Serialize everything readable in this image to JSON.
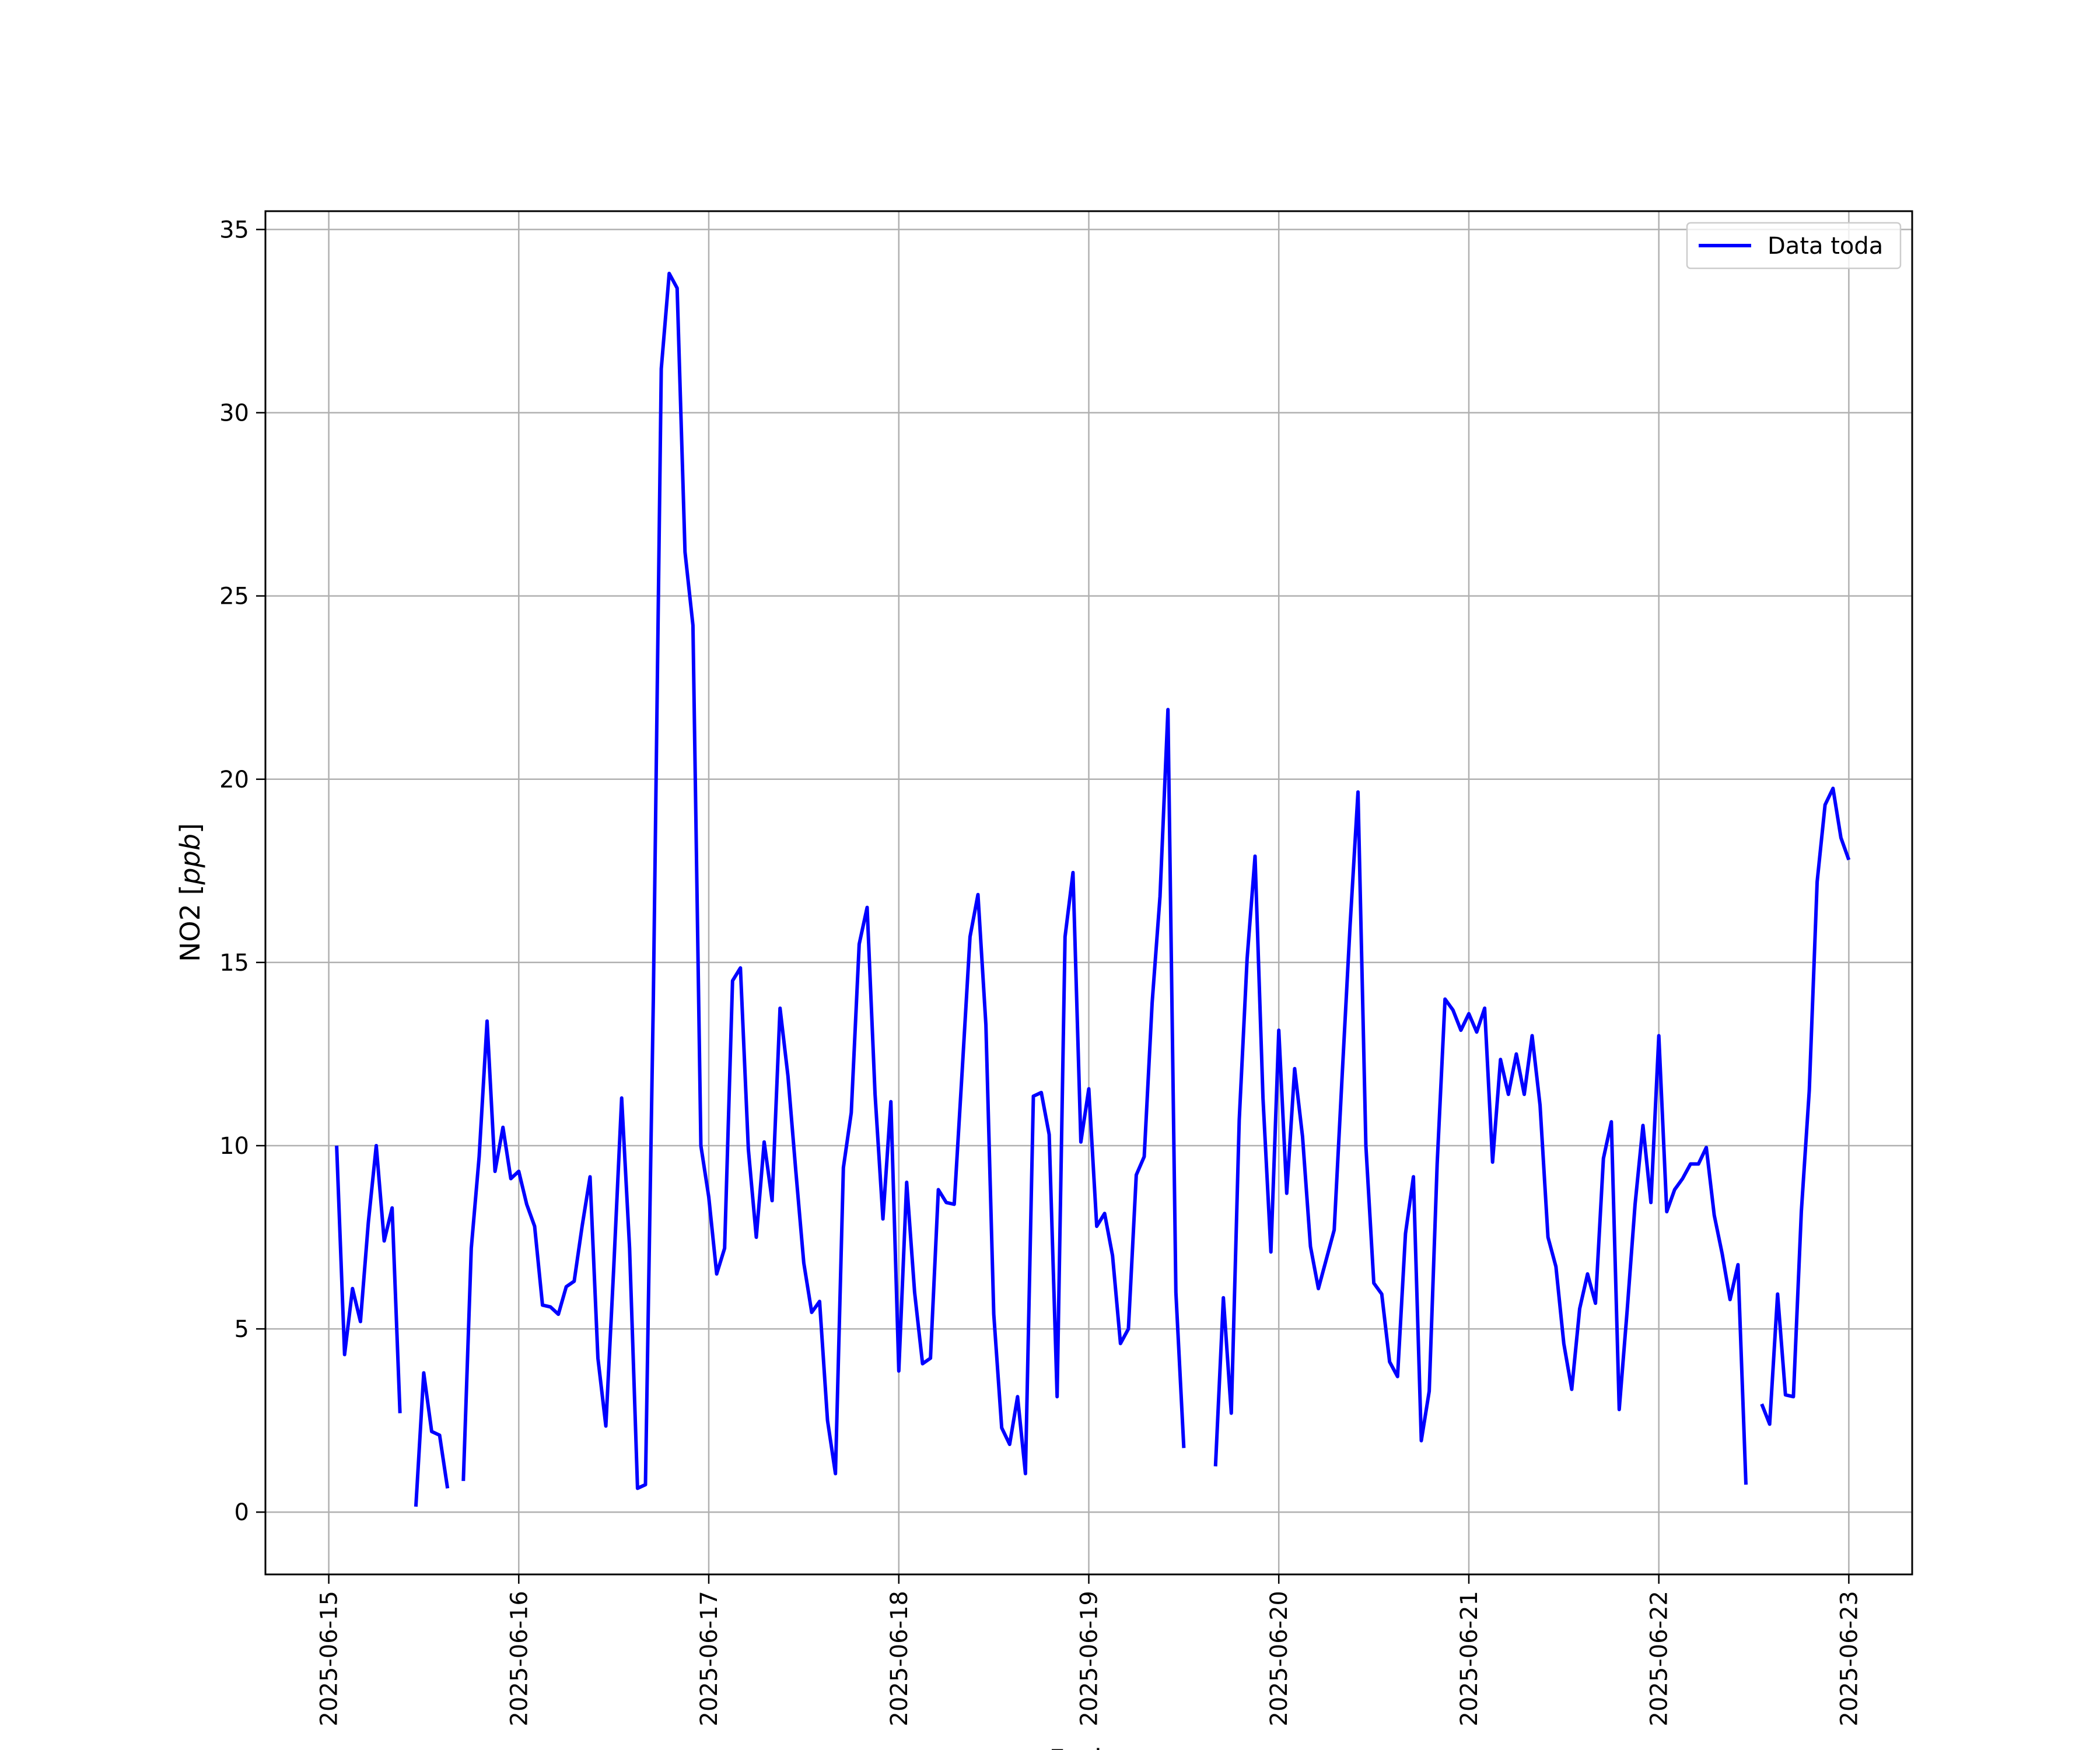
{
  "chart_data": {
    "type": "line",
    "xlabel": "Fecha",
    "ylabel_prefix": "NO2 [",
    "ylabel_unit": "ppb",
    "ylabel_suffix": "]",
    "grid": true,
    "legend_position": "top-right",
    "xlim": [
      "2025-06-14T16:00",
      "2025-06-23T08:00"
    ],
    "ylim": [
      -1.7,
      35.5
    ],
    "x_ticks": [
      "2025-06-15",
      "2025-06-16",
      "2025-06-17",
      "2025-06-18",
      "2025-06-19",
      "2025-06-20",
      "2025-06-21",
      "2025-06-22",
      "2025-06-23"
    ],
    "y_ticks": [
      0,
      5,
      10,
      15,
      20,
      25,
      30,
      35
    ],
    "series": [
      {
        "name": "Data toda",
        "color": "#0000ff",
        "points": [
          [
            "2025-06-15T01:00",
            10.0
          ],
          [
            "2025-06-15T02:00",
            4.3
          ],
          [
            "2025-06-15T03:00",
            6.1
          ],
          [
            "2025-06-15T04:00",
            5.2
          ],
          [
            "2025-06-15T05:00",
            7.9
          ],
          [
            "2025-06-15T06:00",
            10.0
          ],
          [
            "2025-06-15T07:00",
            7.4
          ],
          [
            "2025-06-15T08:00",
            8.3
          ],
          [
            "2025-06-15T09:00",
            2.7
          ],
          [
            "2025-06-15T10:00",
            null
          ],
          [
            "2025-06-15T11:00",
            0.15
          ],
          [
            "2025-06-15T12:00",
            3.8
          ],
          [
            "2025-06-15T13:00",
            2.2
          ],
          [
            "2025-06-15T14:00",
            2.1
          ],
          [
            "2025-06-15T15:00",
            0.65
          ],
          [
            "2025-06-15T16:00",
            null
          ],
          [
            "2025-06-15T17:00",
            0.85
          ],
          [
            "2025-06-15T18:00",
            7.2
          ],
          [
            "2025-06-15T19:00",
            9.7
          ],
          [
            "2025-06-15T20:00",
            13.4
          ],
          [
            "2025-06-15T21:00",
            9.3
          ],
          [
            "2025-06-15T22:00",
            10.5
          ],
          [
            "2025-06-15T23:00",
            9.1
          ],
          [
            "2025-06-16T00:00",
            9.3
          ],
          [
            "2025-06-16T01:00",
            8.4
          ],
          [
            "2025-06-16T02:00",
            7.8
          ],
          [
            "2025-06-16T03:00",
            5.65
          ],
          [
            "2025-06-16T04:00",
            5.6
          ],
          [
            "2025-06-16T05:00",
            5.4
          ],
          [
            "2025-06-16T06:00",
            6.15
          ],
          [
            "2025-06-16T07:00",
            6.3
          ],
          [
            "2025-06-16T08:00",
            7.8
          ],
          [
            "2025-06-16T09:00",
            9.15
          ],
          [
            "2025-06-16T10:00",
            4.2
          ],
          [
            "2025-06-16T11:00",
            2.35
          ],
          [
            "2025-06-16T12:00",
            6.7
          ],
          [
            "2025-06-16T13:00",
            11.3
          ],
          [
            "2025-06-16T14:00",
            7.2
          ],
          [
            "2025-06-16T15:00",
            0.65
          ],
          [
            "2025-06-16T16:00",
            0.75
          ],
          [
            "2025-06-16T17:00",
            14.0
          ],
          [
            "2025-06-16T18:00",
            31.2
          ],
          [
            "2025-06-16T19:00",
            33.8
          ],
          [
            "2025-06-16T20:00",
            33.4
          ],
          [
            "2025-06-16T21:00",
            26.2
          ],
          [
            "2025-06-16T22:00",
            24.2
          ],
          [
            "2025-06-16T23:00",
            10.0
          ],
          [
            "2025-06-17T00:00",
            8.6
          ],
          [
            "2025-06-17T01:00",
            6.5
          ],
          [
            "2025-06-17T02:00",
            7.2
          ],
          [
            "2025-06-17T03:00",
            14.5
          ],
          [
            "2025-06-17T04:00",
            14.85
          ],
          [
            "2025-06-17T05:00",
            9.9
          ],
          [
            "2025-06-17T06:00",
            7.5
          ],
          [
            "2025-06-17T07:00",
            10.1
          ],
          [
            "2025-06-17T08:00",
            8.5
          ],
          [
            "2025-06-17T09:00",
            13.75
          ],
          [
            "2025-06-17T10:00",
            11.9
          ],
          [
            "2025-06-17T11:00",
            9.3
          ],
          [
            "2025-06-17T12:00",
            6.8
          ],
          [
            "2025-06-17T13:00",
            5.45
          ],
          [
            "2025-06-17T14:00",
            5.75
          ],
          [
            "2025-06-17T15:00",
            2.5
          ],
          [
            "2025-06-17T16:00",
            1.05
          ],
          [
            "2025-06-17T17:00",
            9.4
          ],
          [
            "2025-06-17T18:00",
            10.9
          ],
          [
            "2025-06-17T19:00",
            15.5
          ],
          [
            "2025-06-17T20:00",
            16.5
          ],
          [
            "2025-06-17T21:00",
            11.4
          ],
          [
            "2025-06-17T22:00",
            8.0
          ],
          [
            "2025-06-17T23:00",
            11.2
          ],
          [
            "2025-06-18T00:00",
            3.85
          ],
          [
            "2025-06-18T01:00",
            9.0
          ],
          [
            "2025-06-18T02:00",
            6.0
          ],
          [
            "2025-06-18T03:00",
            4.05
          ],
          [
            "2025-06-18T04:00",
            4.2
          ],
          [
            "2025-06-18T05:00",
            8.8
          ],
          [
            "2025-06-18T06:00",
            8.45
          ],
          [
            "2025-06-18T07:00",
            8.4
          ],
          [
            "2025-06-18T08:00",
            12.0
          ],
          [
            "2025-06-18T09:00",
            15.7
          ],
          [
            "2025-06-18T10:00",
            16.85
          ],
          [
            "2025-06-18T11:00",
            13.3
          ],
          [
            "2025-06-18T12:00",
            5.4
          ],
          [
            "2025-06-18T13:00",
            2.3
          ],
          [
            "2025-06-18T14:00",
            1.85
          ],
          [
            "2025-06-18T15:00",
            3.15
          ],
          [
            "2025-06-18T16:00",
            1.05
          ],
          [
            "2025-06-18T17:00",
            11.35
          ],
          [
            "2025-06-18T18:00",
            11.45
          ],
          [
            "2025-06-18T19:00",
            10.3
          ],
          [
            "2025-06-18T20:00",
            3.15
          ],
          [
            "2025-06-18T21:00",
            15.7
          ],
          [
            "2025-06-18T22:00",
            17.45
          ],
          [
            "2025-06-18T23:00",
            10.1
          ],
          [
            "2025-06-19T00:00",
            11.55
          ],
          [
            "2025-06-19T01:00",
            7.8
          ],
          [
            "2025-06-19T02:00",
            8.15
          ],
          [
            "2025-06-19T03:00",
            7.0
          ],
          [
            "2025-06-19T04:00",
            4.6
          ],
          [
            "2025-06-19T05:00",
            5.0
          ],
          [
            "2025-06-19T06:00",
            9.2
          ],
          [
            "2025-06-19T07:00",
            9.7
          ],
          [
            "2025-06-19T08:00",
            13.9
          ],
          [
            "2025-06-19T09:00",
            16.8
          ],
          [
            "2025-06-19T10:00",
            21.9
          ],
          [
            "2025-06-19T11:00",
            6.0
          ],
          [
            "2025-06-19T12:00",
            1.75
          ],
          [
            "2025-06-19T13:00",
            null
          ],
          [
            "2025-06-19T14:00",
            null
          ],
          [
            "2025-06-19T15:00",
            null
          ],
          [
            "2025-06-19T16:00",
            1.25
          ],
          [
            "2025-06-19T17:00",
            5.85
          ],
          [
            "2025-06-19T18:00",
            2.7
          ],
          [
            "2025-06-19T19:00",
            10.7
          ],
          [
            "2025-06-19T20:00",
            15.1
          ],
          [
            "2025-06-19T21:00",
            17.9
          ],
          [
            "2025-06-19T22:00",
            11.3
          ],
          [
            "2025-06-19T23:00",
            7.1
          ],
          [
            "2025-06-20T00:00",
            13.15
          ],
          [
            "2025-06-20T01:00",
            8.7
          ],
          [
            "2025-06-20T02:00",
            12.1
          ],
          [
            "2025-06-20T03:00",
            10.25
          ],
          [
            "2025-06-20T04:00",
            7.25
          ],
          [
            "2025-06-20T05:00",
            6.1
          ],
          [
            "2025-06-20T06:00",
            6.9
          ],
          [
            "2025-06-20T07:00",
            7.7
          ],
          [
            "2025-06-20T08:00",
            11.9
          ],
          [
            "2025-06-20T09:00",
            16.0
          ],
          [
            "2025-06-20T10:00",
            19.65
          ],
          [
            "2025-06-20T11:00",
            10.0
          ],
          [
            "2025-06-20T12:00",
            6.25
          ],
          [
            "2025-06-20T13:00",
            5.95
          ],
          [
            "2025-06-20T14:00",
            4.1
          ],
          [
            "2025-06-20T15:00",
            3.7
          ],
          [
            "2025-06-20T16:00",
            7.6
          ],
          [
            "2025-06-20T17:00",
            9.15
          ],
          [
            "2025-06-20T18:00",
            1.95
          ],
          [
            "2025-06-20T19:00",
            3.3
          ],
          [
            "2025-06-20T20:00",
            9.5
          ],
          [
            "2025-06-20T21:00",
            14.0
          ],
          [
            "2025-06-20T22:00",
            13.7
          ],
          [
            "2025-06-20T23:00",
            13.15
          ],
          [
            "2025-06-21T00:00",
            13.6
          ],
          [
            "2025-06-21T01:00",
            13.1
          ],
          [
            "2025-06-21T02:00",
            13.75
          ],
          [
            "2025-06-21T03:00",
            9.55
          ],
          [
            "2025-06-21T04:00",
            12.35
          ],
          [
            "2025-06-21T05:00",
            11.4
          ],
          [
            "2025-06-21T06:00",
            12.5
          ],
          [
            "2025-06-21T07:00",
            11.4
          ],
          [
            "2025-06-21T08:00",
            13.0
          ],
          [
            "2025-06-21T09:00",
            11.1
          ],
          [
            "2025-06-21T10:00",
            7.5
          ],
          [
            "2025-06-21T11:00",
            6.7
          ],
          [
            "2025-06-21T12:00",
            4.6
          ],
          [
            "2025-06-21T13:00",
            3.35
          ],
          [
            "2025-06-21T14:00",
            5.55
          ],
          [
            "2025-06-21T15:00",
            6.5
          ],
          [
            "2025-06-21T16:00",
            5.7
          ],
          [
            "2025-06-21T17:00",
            9.65
          ],
          [
            "2025-06-21T18:00",
            10.65
          ],
          [
            "2025-06-21T19:00",
            2.8
          ],
          [
            "2025-06-21T20:00",
            5.5
          ],
          [
            "2025-06-21T21:00",
            8.4
          ],
          [
            "2025-06-21T22:00",
            10.55
          ],
          [
            "2025-06-21T23:00",
            8.45
          ],
          [
            "2025-06-22T00:00",
            13.0
          ],
          [
            "2025-06-22T01:00",
            8.2
          ],
          [
            "2025-06-22T02:00",
            8.8
          ],
          [
            "2025-06-22T03:00",
            9.1
          ],
          [
            "2025-06-22T04:00",
            9.5
          ],
          [
            "2025-06-22T05:00",
            9.5
          ],
          [
            "2025-06-22T06:00",
            9.95
          ],
          [
            "2025-06-22T07:00",
            8.1
          ],
          [
            "2025-06-22T08:00",
            7.05
          ],
          [
            "2025-06-22T09:00",
            5.8
          ],
          [
            "2025-06-22T10:00",
            6.75
          ],
          [
            "2025-06-22T11:00",
            0.75
          ],
          [
            "2025-06-22T12:00",
            null
          ],
          [
            "2025-06-22T13:00",
            2.95
          ],
          [
            "2025-06-22T14:00",
            2.4
          ],
          [
            "2025-06-22T15:00",
            5.95
          ],
          [
            "2025-06-22T16:00",
            3.2
          ],
          [
            "2025-06-22T17:00",
            3.15
          ],
          [
            "2025-06-22T18:00",
            8.2
          ],
          [
            "2025-06-22T19:00",
            11.5
          ],
          [
            "2025-06-22T20:00",
            17.2
          ],
          [
            "2025-06-22T21:00",
            19.3
          ],
          [
            "2025-06-22T22:00",
            19.75
          ],
          [
            "2025-06-22T23:00",
            18.4
          ],
          [
            "2025-06-23T00:00",
            17.8
          ]
        ]
      }
    ]
  }
}
